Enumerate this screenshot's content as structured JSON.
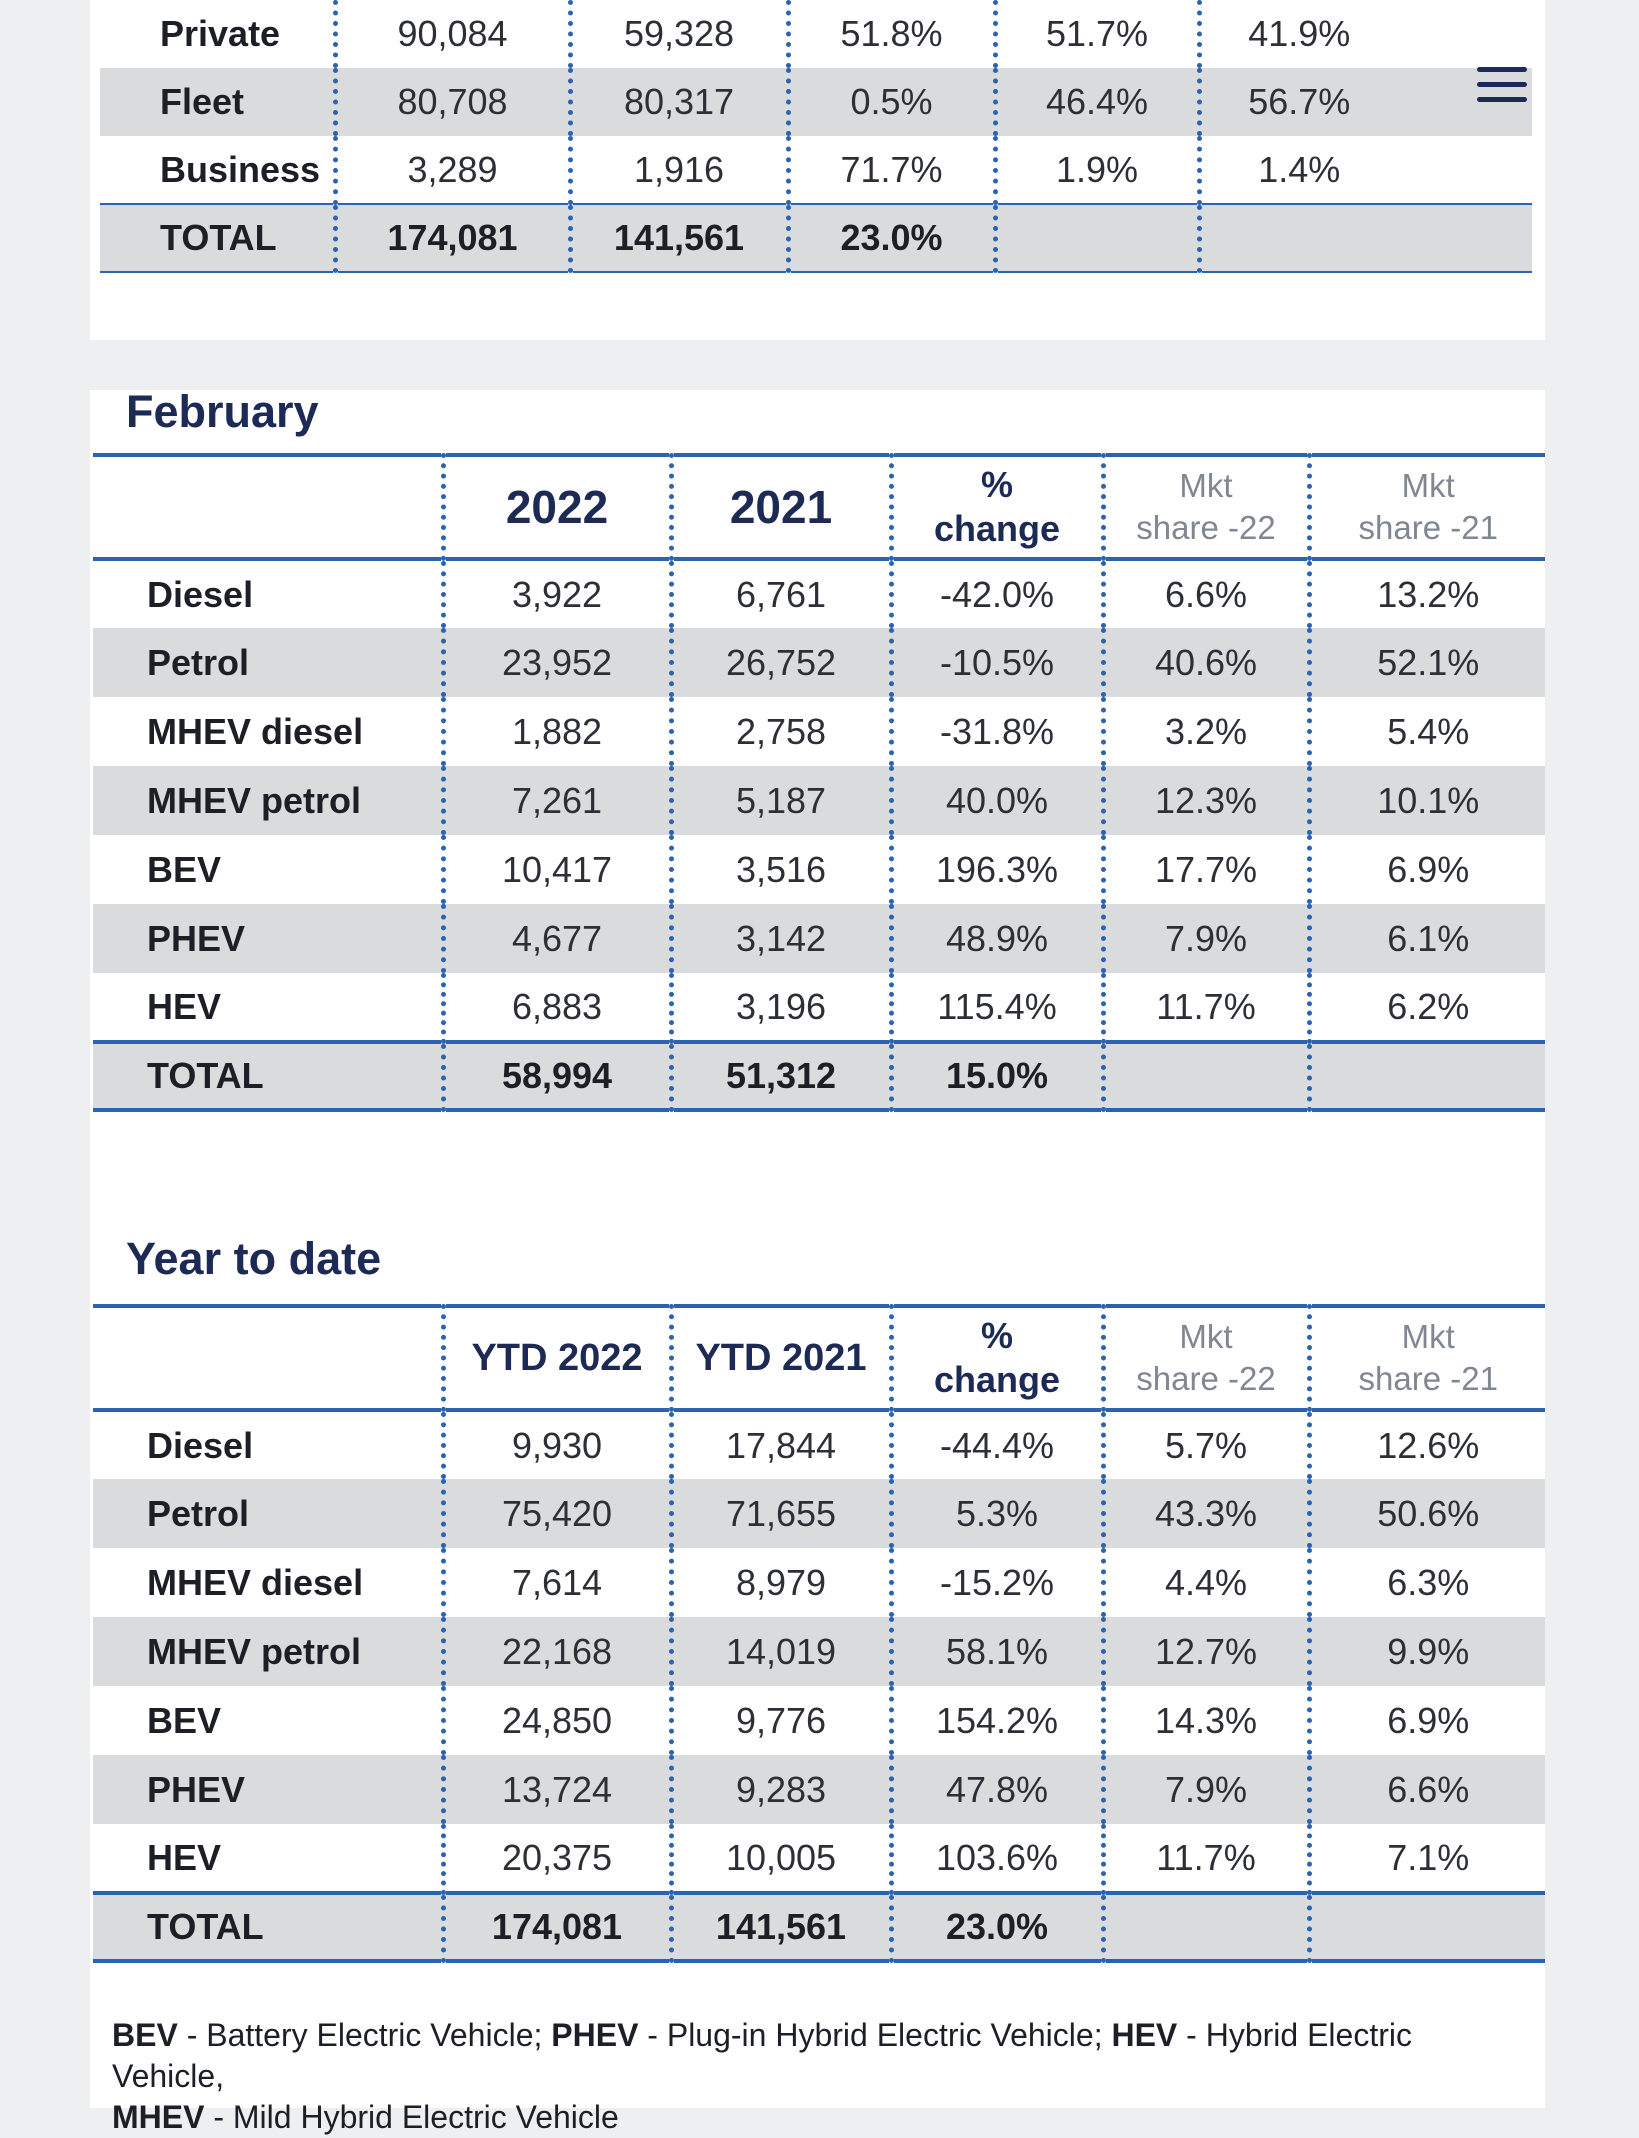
{
  "top_table": {
    "rows": [
      {
        "label": "Private",
        "v2022": "90,084",
        "v2021": "59,328",
        "change": "51.8%",
        "share22": "51.7%",
        "share21": "41.9%"
      },
      {
        "label": "Fleet",
        "v2022": "80,708",
        "v2021": "80,317",
        "change": "0.5%",
        "share22": "46.4%",
        "share21": "56.7%"
      },
      {
        "label": "Business",
        "v2022": "3,289",
        "v2021": "1,916",
        "change": "71.7%",
        "share22": "1.9%",
        "share21": "1.4%"
      }
    ],
    "total": {
      "label": "TOTAL",
      "v2022": "174,081",
      "v2021": "141,561",
      "change": "23.0%"
    }
  },
  "february": {
    "title": "February",
    "headers": {
      "col1": "2022",
      "col2": "2021",
      "pct_top": "%",
      "pct_bottom": "change",
      "share22_top": "Mkt",
      "share22_bottom": "share -22",
      "share21_top": "Mkt",
      "share21_bottom": "share -21"
    },
    "rows": [
      {
        "label": "Diesel",
        "v2022": "3,922",
        "v2021": "6,761",
        "change": "-42.0%",
        "share22": "6.6%",
        "share21": "13.2%"
      },
      {
        "label": "Petrol",
        "v2022": "23,952",
        "v2021": "26,752",
        "change": "-10.5%",
        "share22": "40.6%",
        "share21": "52.1%"
      },
      {
        "label": "MHEV diesel",
        "v2022": "1,882",
        "v2021": "2,758",
        "change": "-31.8%",
        "share22": "3.2%",
        "share21": "5.4%"
      },
      {
        "label": "MHEV petrol",
        "v2022": "7,261",
        "v2021": "5,187",
        "change": "40.0%",
        "share22": "12.3%",
        "share21": "10.1%"
      },
      {
        "label": "BEV",
        "v2022": "10,417",
        "v2021": "3,516",
        "change": "196.3%",
        "share22": "17.7%",
        "share21": "6.9%"
      },
      {
        "label": "PHEV",
        "v2022": "4,677",
        "v2021": "3,142",
        "change": "48.9%",
        "share22": "7.9%",
        "share21": "6.1%"
      },
      {
        "label": "HEV",
        "v2022": "6,883",
        "v2021": "3,196",
        "change": "115.4%",
        "share22": "11.7%",
        "share21": "6.2%"
      }
    ],
    "total": {
      "label": "TOTAL",
      "v2022": "58,994",
      "v2021": "51,312",
      "change": "15.0%"
    }
  },
  "ytd": {
    "title": "Year to date",
    "headers": {
      "col1": "YTD 2022",
      "col2": "YTD 2021",
      "pct_top": "%",
      "pct_bottom": "change",
      "share22_top": "Mkt",
      "share22_bottom": "share -22",
      "share21_top": "Mkt",
      "share21_bottom": "share -21"
    },
    "rows": [
      {
        "label": "Diesel",
        "v2022": "9,930",
        "v2021": "17,844",
        "change": "-44.4%",
        "share22": "5.7%",
        "share21": "12.6%"
      },
      {
        "label": "Petrol",
        "v2022": "75,420",
        "v2021": "71,655",
        "change": "5.3%",
        "share22": "43.3%",
        "share21": "50.6%"
      },
      {
        "label": "MHEV diesel",
        "v2022": "7,614",
        "v2021": "8,979",
        "change": "-15.2%",
        "share22": "4.4%",
        "share21": "6.3%"
      },
      {
        "label": "MHEV petrol",
        "v2022": "22,168",
        "v2021": "14,019",
        "change": "58.1%",
        "share22": "12.7%",
        "share21": "9.9%"
      },
      {
        "label": "BEV",
        "v2022": "24,850",
        "v2021": "9,776",
        "change": "154.2%",
        "share22": "14.3%",
        "share21": "6.9%"
      },
      {
        "label": "PHEV",
        "v2022": "13,724",
        "v2021": "9,283",
        "change": "47.8%",
        "share22": "7.9%",
        "share21": "6.6%"
      },
      {
        "label": "HEV",
        "v2022": "20,375",
        "v2021": "10,005",
        "change": "103.6%",
        "share22": "11.7%",
        "share21": "7.1%"
      }
    ],
    "total": {
      "label": "TOTAL",
      "v2022": "174,081",
      "v2021": "141,561",
      "change": "23.0%"
    }
  },
  "footnote": {
    "bev_abbr": "BEV",
    "bev_text": " - Battery Electric Vehicle; ",
    "phev_abbr": "PHEV",
    "phev_text": " - Plug-in Hybrid Electric Vehicle; ",
    "hev_abbr": "HEV",
    "hev_text": " - Hybrid Electric Vehicle,",
    "mhev_abbr": "MHEV",
    "mhev_text": " - Mild Hybrid Electric Vehicle"
  },
  "menu": {
    "icon": "hamburger-menu-icon"
  }
}
